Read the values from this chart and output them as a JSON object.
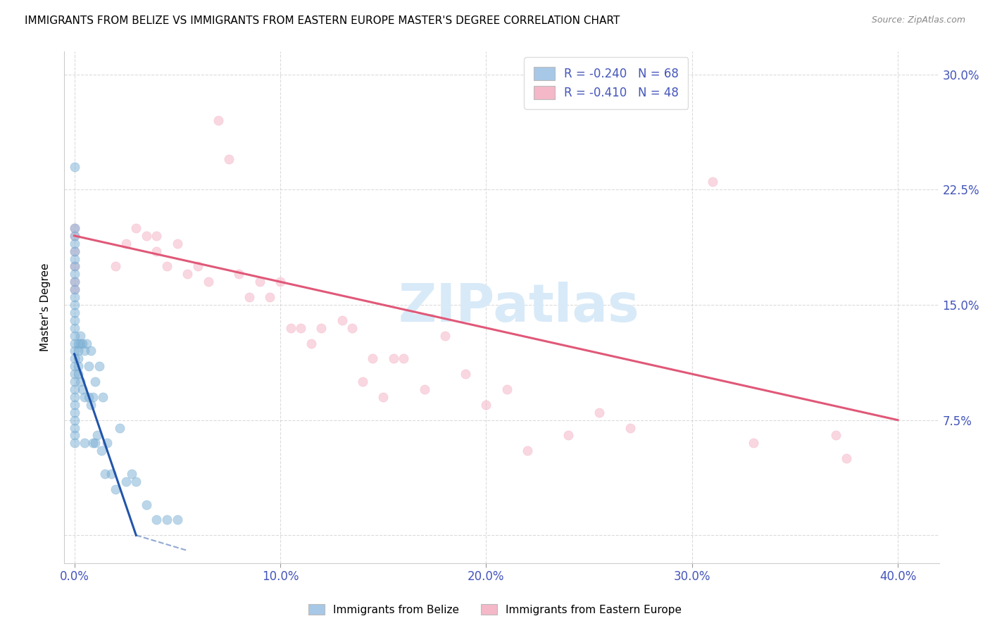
{
  "title": "IMMIGRANTS FROM BELIZE VS IMMIGRANTS FROM EASTERN EUROPE MASTER'S DEGREE CORRELATION CHART",
  "source": "Source: ZipAtlas.com",
  "ylabel": "Master's Degree",
  "watermark": "ZIPatlas",
  "legend": [
    {
      "label": "R = -0.240   N = 68",
      "color": "#a8c8e8"
    },
    {
      "label": "R = -0.410   N = 48",
      "color": "#f4b8c8"
    }
  ],
  "yticks": [
    0.0,
    0.075,
    0.15,
    0.225,
    0.3
  ],
  "ytick_labels": [
    "",
    "7.5%",
    "15.0%",
    "22.5%",
    "30.0%"
  ],
  "xticks": [
    0.0,
    0.1,
    0.2,
    0.3,
    0.4
  ],
  "xtick_labels": [
    "0.0%",
    "10.0%",
    "20.0%",
    "30.0%",
    "40.0%"
  ],
  "xlim": [
    -0.005,
    0.42
  ],
  "ylim": [
    -0.018,
    0.315
  ],
  "belize_x": [
    0.0,
    0.0,
    0.0,
    0.0,
    0.0,
    0.0,
    0.0,
    0.0,
    0.0,
    0.0,
    0.0,
    0.0,
    0.0,
    0.0,
    0.0,
    0.0,
    0.0,
    0.0,
    0.0,
    0.0,
    0.0,
    0.0,
    0.0,
    0.0,
    0.0,
    0.0,
    0.0,
    0.0,
    0.0,
    0.0,
    0.002,
    0.002,
    0.002,
    0.002,
    0.002,
    0.003,
    0.003,
    0.003,
    0.004,
    0.004,
    0.005,
    0.005,
    0.005,
    0.006,
    0.007,
    0.007,
    0.008,
    0.008,
    0.009,
    0.009,
    0.01,
    0.01,
    0.011,
    0.012,
    0.013,
    0.014,
    0.015,
    0.016,
    0.018,
    0.02,
    0.022,
    0.025,
    0.028,
    0.03,
    0.035,
    0.04,
    0.045,
    0.05
  ],
  "belize_y": [
    0.24,
    0.2,
    0.195,
    0.19,
    0.185,
    0.18,
    0.175,
    0.17,
    0.165,
    0.16,
    0.155,
    0.15,
    0.145,
    0.14,
    0.135,
    0.13,
    0.125,
    0.12,
    0.115,
    0.11,
    0.105,
    0.1,
    0.095,
    0.09,
    0.085,
    0.08,
    0.075,
    0.07,
    0.065,
    0.06,
    0.125,
    0.12,
    0.115,
    0.11,
    0.105,
    0.13,
    0.125,
    0.1,
    0.125,
    0.095,
    0.12,
    0.09,
    0.06,
    0.125,
    0.11,
    0.09,
    0.12,
    0.085,
    0.09,
    0.06,
    0.1,
    0.06,
    0.065,
    0.11,
    0.055,
    0.09,
    0.04,
    0.06,
    0.04,
    0.03,
    0.07,
    0.035,
    0.04,
    0.035,
    0.02,
    0.01,
    0.01,
    0.01
  ],
  "eastern_x": [
    0.0,
    0.0,
    0.0,
    0.0,
    0.0,
    0.0,
    0.02,
    0.025,
    0.03,
    0.035,
    0.04,
    0.04,
    0.045,
    0.05,
    0.055,
    0.06,
    0.065,
    0.07,
    0.075,
    0.08,
    0.085,
    0.09,
    0.095,
    0.1,
    0.105,
    0.11,
    0.115,
    0.12,
    0.13,
    0.135,
    0.14,
    0.145,
    0.15,
    0.155,
    0.16,
    0.17,
    0.18,
    0.19,
    0.2,
    0.21,
    0.22,
    0.24,
    0.255,
    0.27,
    0.31,
    0.33,
    0.37,
    0.375
  ],
  "eastern_y": [
    0.2,
    0.195,
    0.185,
    0.175,
    0.165,
    0.16,
    0.175,
    0.19,
    0.2,
    0.195,
    0.195,
    0.185,
    0.175,
    0.19,
    0.17,
    0.175,
    0.165,
    0.27,
    0.245,
    0.17,
    0.155,
    0.165,
    0.155,
    0.165,
    0.135,
    0.135,
    0.125,
    0.135,
    0.14,
    0.135,
    0.1,
    0.115,
    0.09,
    0.115,
    0.115,
    0.095,
    0.13,
    0.105,
    0.085,
    0.095,
    0.055,
    0.065,
    0.08,
    0.07,
    0.23,
    0.06,
    0.065,
    0.05
  ],
  "belize_line_x": [
    0.0,
    0.03
  ],
  "belize_line_y": [
    0.118,
    0.0
  ],
  "eastern_line_x": [
    0.0,
    0.4
  ],
  "eastern_line_y": [
    0.195,
    0.075
  ],
  "belize_dot_color": "#7bafd4",
  "eastern_dot_color": "#f4b0c4",
  "belize_line_color": "#2255aa",
  "eastern_line_color": "#e05878",
  "legend_belize_color": "#a8c8e8",
  "legend_eastern_color": "#f4b8c8",
  "grid_color": "#cccccc",
  "title_fontsize": 11,
  "axis_color": "#4455bb",
  "watermark_color": "#d8eaf8",
  "dot_size": 90,
  "dot_alpha": 0.5
}
